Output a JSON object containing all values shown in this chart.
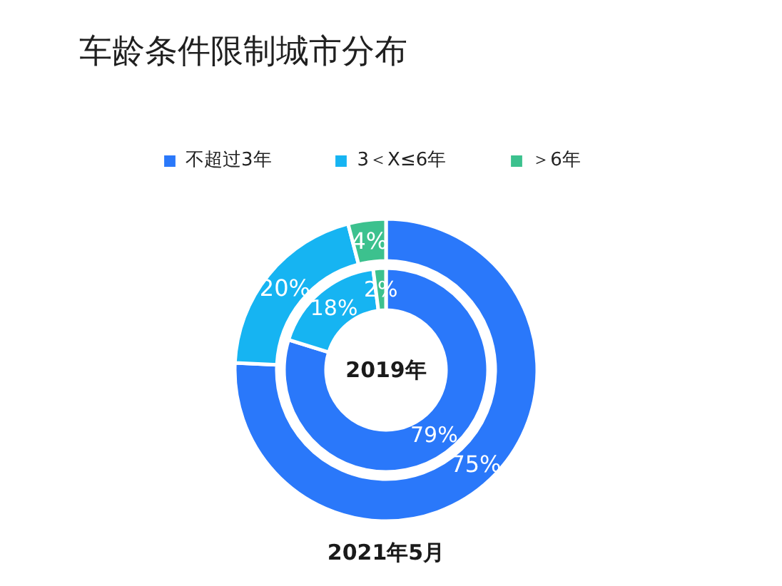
{
  "chart_data": {
    "type": "donut",
    "title": "车龄条件限制城市分布",
    "categories": [
      "不超过3年",
      "3＜X≤6年",
      "＞6年"
    ],
    "colors": [
      "#2a78fa",
      "#16b4f2",
      "#3cc18e"
    ],
    "legend": "top",
    "series": [
      {
        "name": "2019年",
        "values": [
          79,
          18,
          2
        ],
        "value_labels": [
          "79%",
          "18%",
          "2%"
        ]
      },
      {
        "name": "2021年5月",
        "values": [
          75,
          20,
          4
        ],
        "value_labels": [
          "75%",
          "20%",
          "4%"
        ]
      }
    ]
  }
}
